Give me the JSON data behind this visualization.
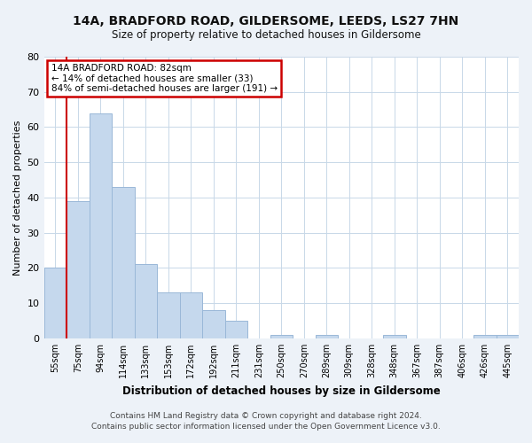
{
  "title": "14A, BRADFORD ROAD, GILDERSOME, LEEDS, LS27 7HN",
  "subtitle": "Size of property relative to detached houses in Gildersome",
  "xlabel": "Distribution of detached houses by size in Gildersome",
  "ylabel": "Number of detached properties",
  "bin_labels": [
    "55sqm",
    "75sqm",
    "94sqm",
    "114sqm",
    "133sqm",
    "153sqm",
    "172sqm",
    "192sqm",
    "211sqm",
    "231sqm",
    "250sqm",
    "270sqm",
    "289sqm",
    "309sqm",
    "328sqm",
    "348sqm",
    "367sqm",
    "387sqm",
    "406sqm",
    "426sqm",
    "445sqm"
  ],
  "bar_heights": [
    20,
    39,
    64,
    43,
    21,
    13,
    13,
    8,
    5,
    0,
    1,
    0,
    1,
    0,
    0,
    1,
    0,
    0,
    0,
    1,
    1
  ],
  "bar_color": "#c5d8ed",
  "bar_edge_color": "#9ab8d8",
  "ylim": [
    0,
    80
  ],
  "yticks": [
    0,
    10,
    20,
    30,
    40,
    50,
    60,
    70,
    80
  ],
  "vline_x_index": 1,
  "vline_color": "#cc0000",
  "annotation_title": "14A BRADFORD ROAD: 82sqm",
  "annotation_line1": "← 14% of detached houses are smaller (33)",
  "annotation_line2": "84% of semi-detached houses are larger (191) →",
  "annotation_box_color": "#cc0000",
  "footer_line1": "Contains HM Land Registry data © Crown copyright and database right 2024.",
  "footer_line2": "Contains public sector information licensed under the Open Government Licence v3.0.",
  "bg_color": "#edf2f8",
  "plot_bg_color": "#ffffff",
  "grid_color": "#c8d8e8"
}
